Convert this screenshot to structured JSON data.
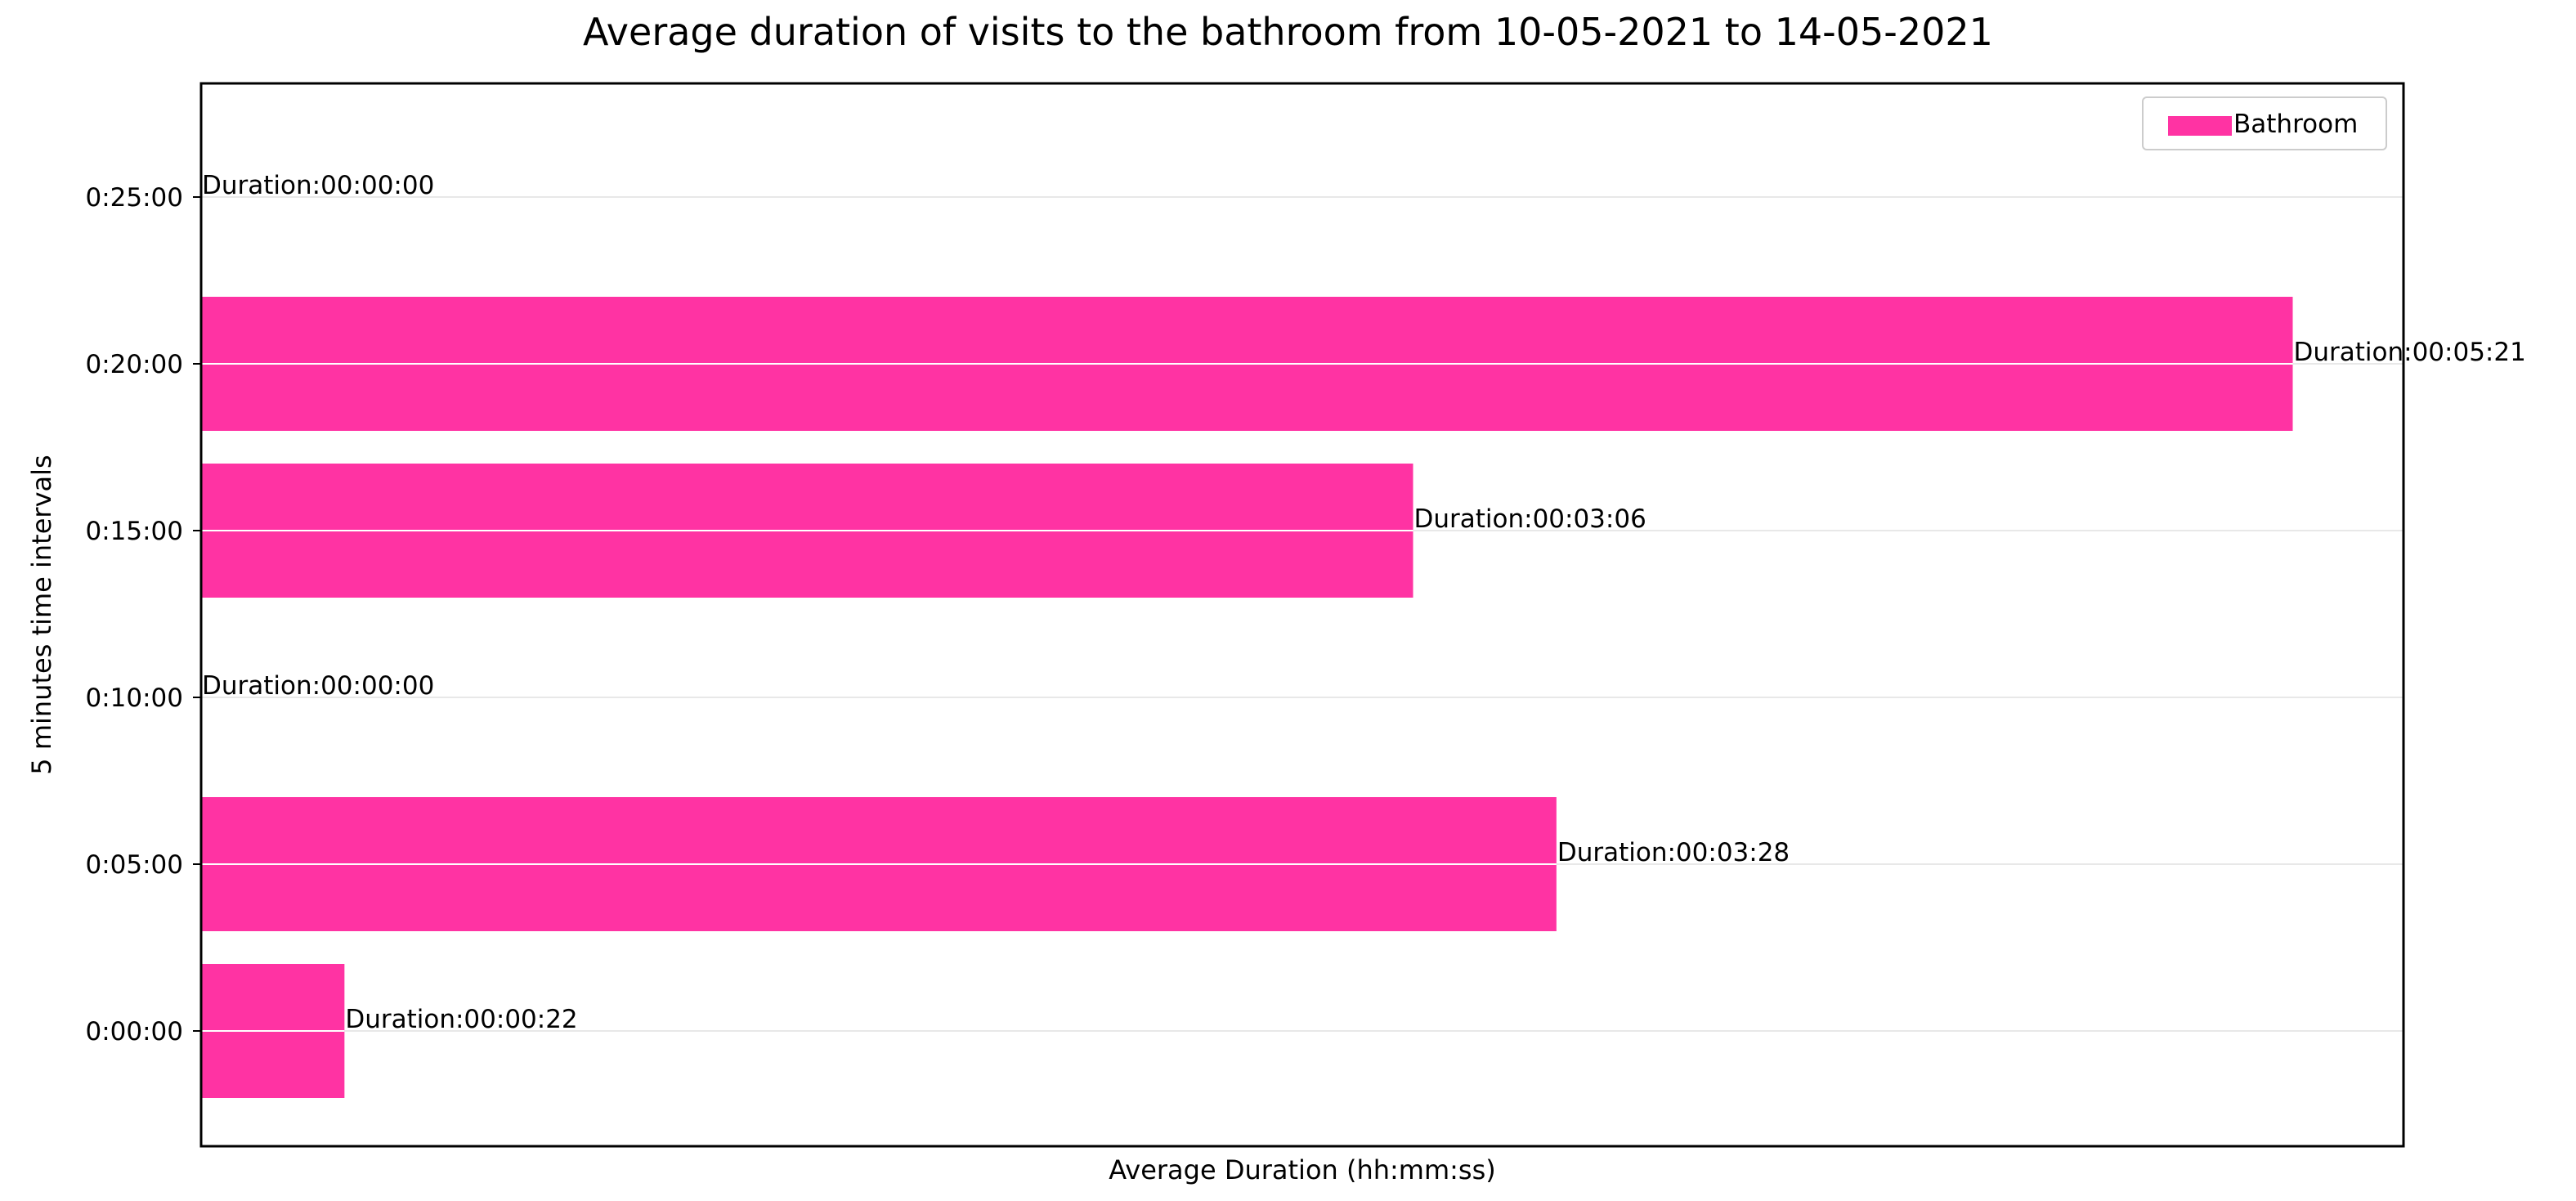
{
  "chart_data": {
    "type": "bar",
    "orientation": "horizontal",
    "title": "Average duration of visits to the bathroom from 10-05-2021 to 14-05-2021",
    "xlabel": "Average Duration (hh:mm:ss)",
    "ylabel": "5 minutes time intervals",
    "categories": [
      "0:00:00",
      "0:05:00",
      "0:10:00",
      "0:15:00",
      "0:20:00",
      "0:25:00"
    ],
    "series": [
      {
        "name": "Bathroom",
        "color": "#ff33a3",
        "values_seconds": [
          22,
          208,
          0,
          186,
          321,
          0
        ],
        "labels": [
          "Duration:00:00:22",
          "Duration:00:03:28",
          "Duration:00:00:00",
          "Duration:00:03:06",
          "Duration:00:05:21",
          "Duration:00:00:00"
        ]
      }
    ],
    "xlim_seconds": [
      0,
      338
    ],
    "grid": "horizontal",
    "legend_position": "top-right"
  }
}
